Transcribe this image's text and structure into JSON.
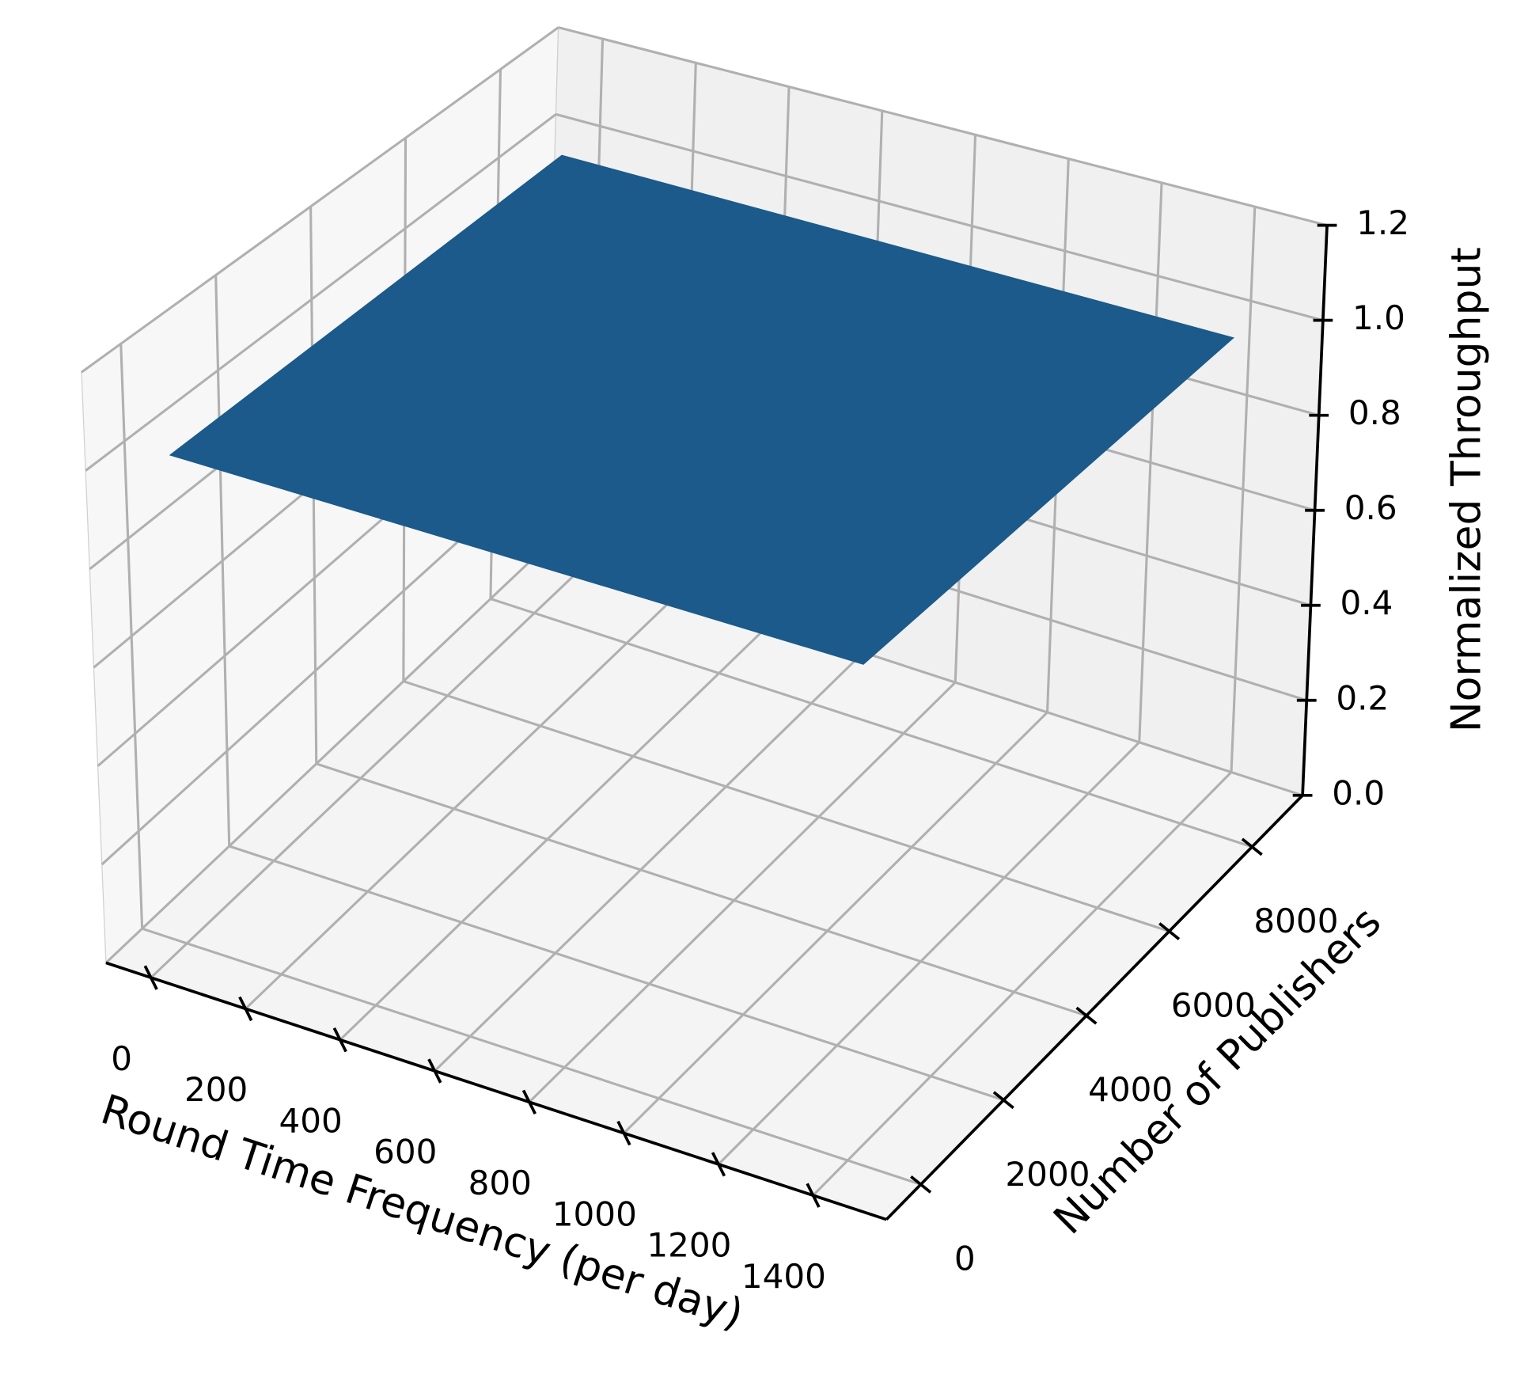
{
  "chart_data": {
    "type": "surface3d",
    "x_label": "Round Time Frequency (per day)",
    "y_label": "Number of Publishers",
    "z_label": "Normalized Throughput",
    "x": [
      0,
      1440
    ],
    "y": [
      0,
      8400
    ],
    "z": [
      [
        1.0,
        1.0
      ],
      [
        1.0,
        1.0
      ]
    ],
    "color": "#1b5a8a",
    "xlim": [
      -95,
      1555
    ],
    "ylim": [
      -830,
      9220
    ],
    "zlim": [
      0,
      1.2
    ],
    "xticks": [
      0,
      200,
      400,
      600,
      800,
      1000,
      1200,
      1400
    ],
    "yticks": [
      0,
      2000,
      4000,
      6000,
      8000
    ],
    "zticks": [
      {
        "value": 0,
        "label": "0.0"
      },
      0.2,
      0.4,
      0.6,
      0.8,
      {
        "value": 1,
        "label": "1.0"
      },
      1.2
    ],
    "grid": true
  }
}
